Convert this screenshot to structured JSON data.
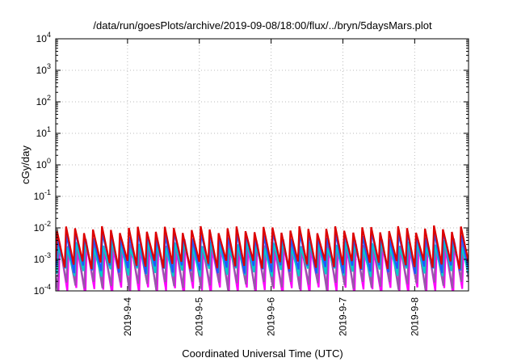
{
  "chart_data": {
    "type": "line",
    "title": "/data/run/goesPlots/archive/2019-09-08/18:00/flux/../bryn/5daysMars.plot",
    "xlabel": "Coordinated Universal Time (UTC)",
    "ylabel": "cGy/day",
    "x_range": [
      "2019-09-03 00:00",
      "2019-09-08 18:00"
    ],
    "y_scale": "log",
    "ylim": [
      0.0001,
      10000
    ],
    "x_ticks": [
      "2019-9-4",
      "2019-9-5",
      "2019-9-6",
      "2019-9-7",
      "2019-9-8"
    ],
    "y_ticks": [
      {
        "base": "10",
        "exp": "-4"
      },
      {
        "base": "10",
        "exp": "-3"
      },
      {
        "base": "10",
        "exp": "-2"
      },
      {
        "base": "10",
        "exp": "-1"
      },
      {
        "base": "10",
        "exp": "0"
      },
      {
        "base": "10",
        "exp": "1"
      },
      {
        "base": "10",
        "exp": "2"
      },
      {
        "base": "10",
        "exp": "3"
      },
      {
        "base": "10",
        "exp": "4"
      }
    ],
    "grid": true,
    "legend": "none",
    "cycle_hours": 3,
    "series": [
      {
        "color": "#ff00ff",
        "peak": 0.0025,
        "trough": 0.0001,
        "phase": 0.3
      },
      {
        "color": "#9955aa",
        "peak": 0.0035,
        "trough": 0.00015,
        "phase": 0.2
      },
      {
        "color": "#00cccc",
        "peak": 0.003,
        "trough": 0.0004,
        "phase": 0.1
      },
      {
        "color": "#2255ff",
        "peak": 0.006,
        "trough": 0.0005,
        "phase": 0.05
      },
      {
        "color": "#dd0000",
        "peak": 0.009,
        "trough": 0.0007,
        "phase": 0.0
      }
    ]
  }
}
